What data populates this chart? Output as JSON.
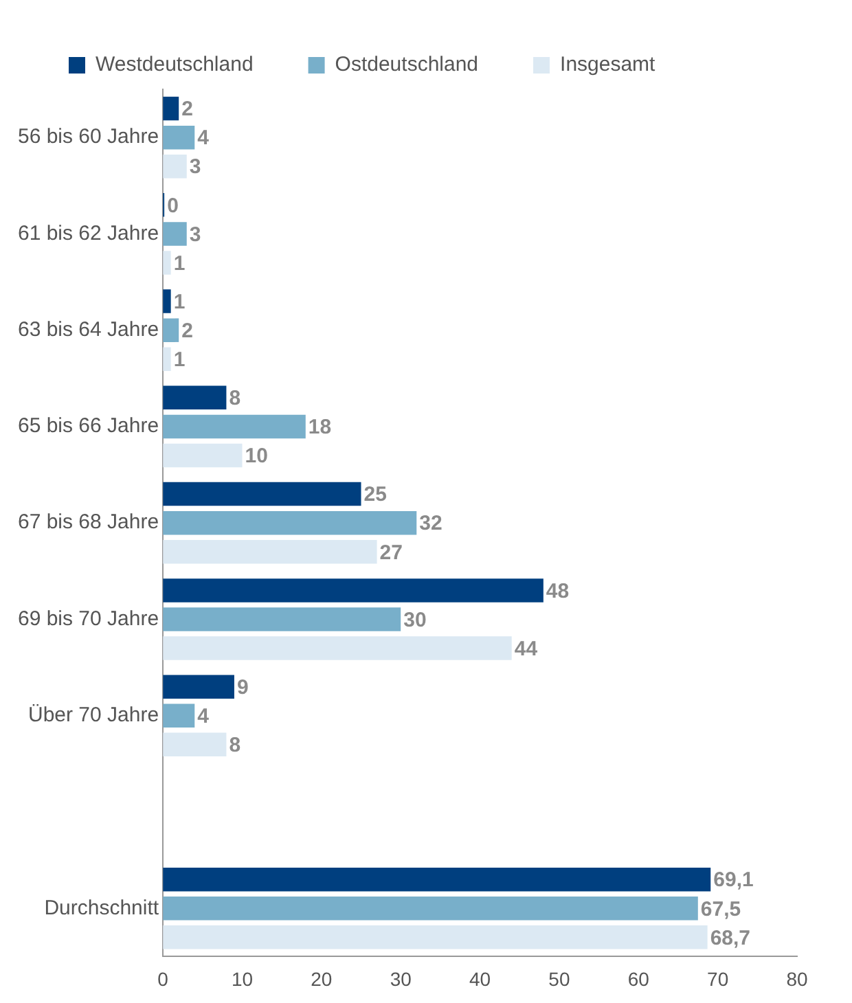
{
  "chart_data": {
    "type": "bar",
    "orientation": "horizontal",
    "categories": [
      "56 bis 60 Jahre",
      "61 bis 62 Jahre",
      "63 bis 64 Jahre",
      "65 bis 66 Jahre",
      "67 bis 68 Jahre",
      "69 bis 70 Jahre",
      "Über 70 Jahre",
      null,
      "Durchschnitt"
    ],
    "series": [
      {
        "name": "Westdeutschland",
        "color": "#003f7f",
        "values": [
          2,
          0,
          1,
          8,
          25,
          48,
          9,
          null,
          69.1
        ],
        "value_labels": [
          "2",
          "0",
          "1",
          "8",
          "25",
          "48",
          "9",
          null,
          "69,1"
        ]
      },
      {
        "name": "Ostdeutschland",
        "color": "#78afca",
        "values": [
          4,
          3,
          2,
          18,
          32,
          30,
          4,
          null,
          67.5
        ],
        "value_labels": [
          "4",
          "3",
          "2",
          "18",
          "32",
          "30",
          "4",
          null,
          "67,5"
        ]
      },
      {
        "name": "Insgesamt",
        "color": "#dce9f3",
        "values": [
          3,
          1,
          1,
          10,
          27,
          44,
          8,
          null,
          68.7
        ],
        "value_labels": [
          "3",
          "1",
          "1",
          "10",
          "27",
          "44",
          "8",
          null,
          "68,7"
        ]
      }
    ],
    "xlim": [
      0,
      80
    ],
    "xticks": [
      0,
      10,
      20,
      30,
      40,
      50,
      60,
      70,
      80
    ],
    "legend": "top left",
    "grid": false
  }
}
